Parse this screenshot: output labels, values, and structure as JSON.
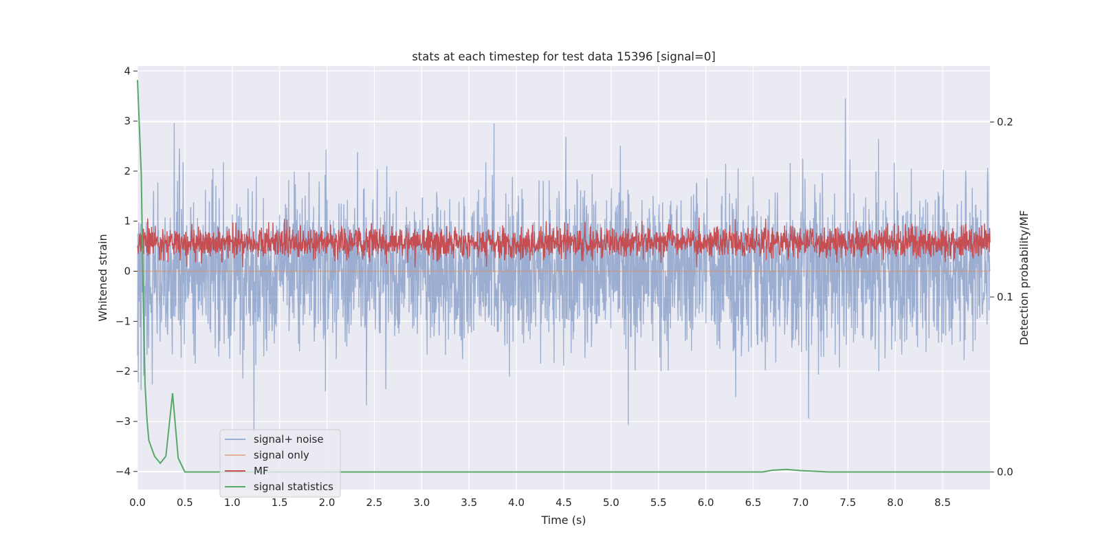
{
  "chart_data": {
    "type": "line",
    "title": "stats at each timestep for test data 15396 [signal=0]",
    "xlabel": "Time (s)",
    "ylabel": "Whitened strain",
    "y2label": "Detection probability/MF",
    "xlim": [
      0.0,
      9.0
    ],
    "ylim": [
      -4.36,
      4.1
    ],
    "y2lim": [
      -0.01,
      0.232
    ],
    "xticks": [
      "0.0",
      "0.5",
      "1.0",
      "1.5",
      "2.0",
      "2.5",
      "3.0",
      "3.5",
      "4.0",
      "4.5",
      "5.0",
      "5.5",
      "6.0",
      "6.5",
      "7.0",
      "7.5",
      "8.0",
      "8.5"
    ],
    "yticks": [
      "4",
      "3",
      "2",
      "1",
      "0",
      "−1",
      "−2",
      "−3",
      "−4"
    ],
    "y2ticks": [
      "0.2",
      "0.1",
      "0.0"
    ],
    "grid": true,
    "legend_position": "lower-left",
    "colors": {
      "background": "#eaeaf2",
      "grid": "#ffffff",
      "signal_noise": "#4c72b0",
      "signal_only": "#dd8452",
      "mf": "#c44e52",
      "statistics": "#55a868"
    },
    "series": [
      {
        "name": "signal+ noise",
        "axis": "left",
        "style": "dense noise, amplitude envelope ~±2, spikes to ~3.7 and ~-3.2",
        "values": []
      },
      {
        "name": "signal only",
        "axis": "left",
        "values": [
          [
            0.0,
            0.0
          ],
          [
            9.0,
            0.0
          ]
        ]
      },
      {
        "name": "MF",
        "axis": "right",
        "style": "dense noise band between ~0.117 and ~0.145",
        "values": []
      },
      {
        "name": "signal statistics",
        "axis": "right",
        "values": [
          [
            0.0,
            0.224
          ],
          [
            0.04,
            0.17
          ],
          [
            0.06,
            0.1
          ],
          [
            0.08,
            0.05
          ],
          [
            0.1,
            0.03
          ],
          [
            0.12,
            0.018
          ],
          [
            0.18,
            0.009
          ],
          [
            0.24,
            0.005
          ],
          [
            0.3,
            0.009
          ],
          [
            0.37,
            0.045
          ],
          [
            0.43,
            0.008
          ],
          [
            0.5,
            0.0
          ],
          [
            6.6,
            0.0
          ],
          [
            6.7,
            0.001
          ],
          [
            6.85,
            0.0015
          ],
          [
            7.0,
            0.0008
          ],
          [
            7.3,
            0.0
          ],
          [
            9.0,
            0.0
          ]
        ]
      }
    ]
  }
}
